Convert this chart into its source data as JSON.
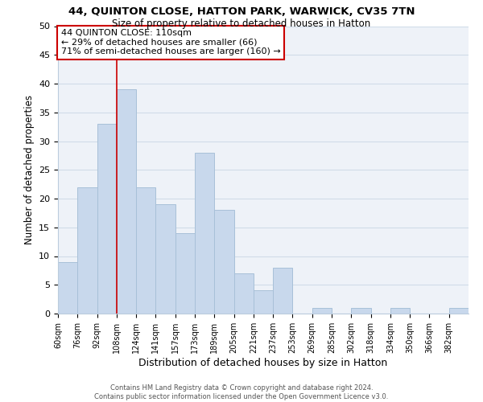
{
  "title": "44, QUINTON CLOSE, HATTON PARK, WARWICK, CV35 7TN",
  "subtitle": "Size of property relative to detached houses in Hatton",
  "xlabel": "Distribution of detached houses by size in Hatton",
  "ylabel": "Number of detached properties",
  "bar_color": "#c8d8ec",
  "bar_edge_color": "#a8c0d8",
  "bin_labels": [
    "60sqm",
    "76sqm",
    "92sqm",
    "108sqm",
    "124sqm",
    "141sqm",
    "157sqm",
    "173sqm",
    "189sqm",
    "205sqm",
    "221sqm",
    "237sqm",
    "253sqm",
    "269sqm",
    "285sqm",
    "302sqm",
    "318sqm",
    "334sqm",
    "350sqm",
    "366sqm",
    "382sqm"
  ],
  "bar_heights": [
    9,
    22,
    33,
    39,
    22,
    19,
    14,
    28,
    18,
    7,
    4,
    8,
    0,
    1,
    0,
    1,
    0,
    1,
    0,
    0,
    1
  ],
  "ylim": [
    0,
    50
  ],
  "yticks": [
    0,
    5,
    10,
    15,
    20,
    25,
    30,
    35,
    40,
    45,
    50
  ],
  "property_line_x": 3,
  "annotation_title": "44 QUINTON CLOSE: 110sqm",
  "annotation_line1": "← 29% of detached houses are smaller (66)",
  "annotation_line2": "71% of semi-detached houses are larger (160) →",
  "annotation_box_color": "#ffffff",
  "annotation_box_edge": "#cc0000",
  "property_line_color": "#cc0000",
  "footer_line1": "Contains HM Land Registry data © Crown copyright and database right 2024.",
  "footer_line2": "Contains public sector information licensed under the Open Government Licence v3.0.",
  "grid_color": "#d0dce8",
  "background_color": "#eef2f8"
}
